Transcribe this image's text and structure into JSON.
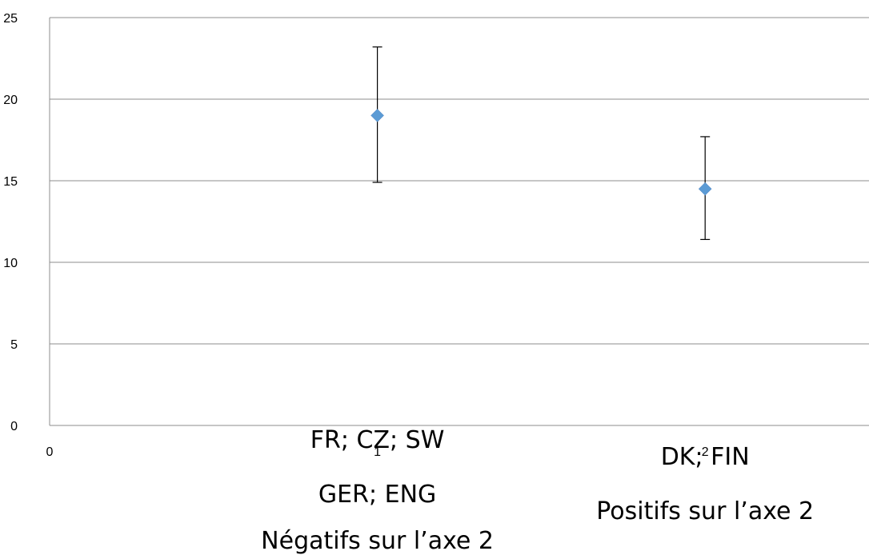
{
  "chart_data": {
    "type": "scatter",
    "xlim": [
      0,
      2.5
    ],
    "ylim": [
      0,
      25
    ],
    "y_ticks": [
      0,
      5,
      10,
      15,
      20,
      25
    ],
    "x_tick_labels": [
      {
        "x": 0,
        "text": "0"
      },
      {
        "x": 1,
        "text": "1"
      },
      {
        "x": 2,
        "text": "2"
      }
    ],
    "grid": true,
    "marker": "diamond",
    "marker_color": "#5b9bd5",
    "points": [
      {
        "x": 1,
        "y": 19.0,
        "err_low": 14.9,
        "err_high": 23.2
      },
      {
        "x": 2,
        "y": 14.5,
        "err_low": 11.4,
        "err_high": 17.7
      }
    ],
    "category_annotations": [
      {
        "x": 1,
        "lines": [
          "FR; CZ; SW",
          "GER; ENG",
          "Négatifs sur l’axe 2"
        ]
      },
      {
        "x": 2,
        "lines": [
          "DK; FIN",
          "Positifs sur l’axe 2"
        ]
      }
    ]
  }
}
